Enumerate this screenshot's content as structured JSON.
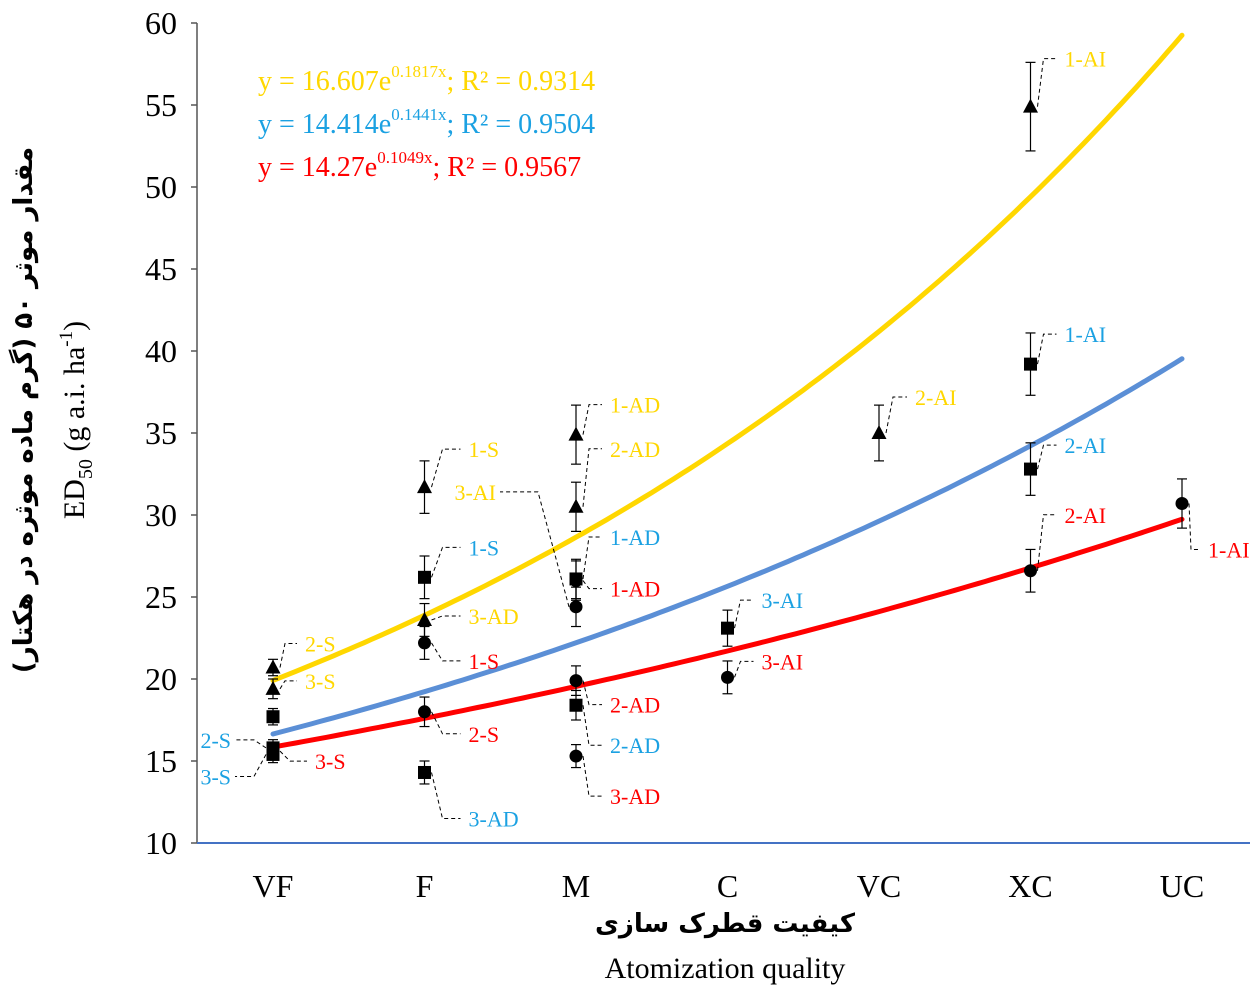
{
  "chart_data": {
    "type": "scatter",
    "categories": [
      "VF",
      "F",
      "M",
      "C",
      "VC",
      "XC",
      "UC"
    ],
    "ylim": [
      10,
      60
    ],
    "yticks": [
      10,
      15,
      20,
      25,
      30,
      35,
      40,
      45,
      50,
      55,
      60
    ],
    "xlabel_fa": "کیفیت قطرک سازی",
    "xlabel_en": "Atomization quality",
    "ylabel_fa": "مقدار موثر ۵۰ (گرم ماده موثره در هکتار)",
    "ylabel_en_main": "ED",
    "ylabel_en_sub": "50",
    "ylabel_en_rest": " (g a.i. ha",
    "ylabel_en_sup": "-1",
    "ylabel_en_close": ")",
    "equations": [
      {
        "pre": "y = 16.607e",
        "exp": "0.1817x",
        "post": "; R² = 0.9314",
        "color": "#FFD700",
        "a": 16.607,
        "b": 0.1817
      },
      {
        "pre": "y = 14.414e",
        "exp": "0.1441x",
        "post": "; R² = 0.9504",
        "color": "#1BA1E2",
        "a": 14.414,
        "b": 0.1441
      },
      {
        "pre": "y = 14.27e",
        "exp": "0.1049x",
        "post": "; R² = 0.9567",
        "color": "#FF0000",
        "a": 14.27,
        "b": 0.1049
      }
    ],
    "trendlines": [
      {
        "marker": "triangle",
        "color": "#FFD700",
        "a": 16.607,
        "b": 0.1817
      },
      {
        "marker": "square",
        "color": "#5B8FD6",
        "a": 14.414,
        "b": 0.1441
      },
      {
        "marker": "circle",
        "color": "#FF0000",
        "a": 14.27,
        "b": 0.1049
      }
    ],
    "points": [
      {
        "x": 1,
        "y": 20.7,
        "err": 0.5,
        "marker": "triangle",
        "label": "2-S",
        "color": "#FFD700",
        "dx": 28,
        "dy": -24
      },
      {
        "x": 1,
        "y": 19.4,
        "err": 0.6,
        "marker": "triangle",
        "label": "3-S",
        "color": "#FFD700",
        "dx": 28,
        "dy": -8
      },
      {
        "x": 1,
        "y": 17.7,
        "err": 0.5,
        "marker": "square",
        "label": "",
        "color": "#000000",
        "dx": 0,
        "dy": 0
      },
      {
        "x": 1,
        "y": 15.8,
        "err": 0.5,
        "marker": "square",
        "label": "2-S",
        "color": "#1BA1E2",
        "dx": -42,
        "dy": -8
      },
      {
        "x": 1,
        "y": 15.4,
        "err": 0.5,
        "marker": "square",
        "label": "3-S",
        "color": "#1BA1E2",
        "dx": -42,
        "dy": 22
      },
      {
        "x": 1,
        "y": 15.6,
        "err": 0.5,
        "marker": "circle",
        "label": "3-S",
        "color": "#FF0000",
        "dx": 38,
        "dy": 10
      },
      {
        "x": 2,
        "y": 31.7,
        "err": 1.6,
        "marker": "triangle",
        "label": "1-S",
        "color": "#FFD700",
        "dx": 40,
        "dy": -38
      },
      {
        "x": 2,
        "y": 23.6,
        "err": 1.0,
        "marker": "triangle",
        "label": "3-AD",
        "color": "#FFD700",
        "dx": 40,
        "dy": -4
      },
      {
        "x": 2,
        "y": 26.2,
        "err": 1.3,
        "marker": "square",
        "label": "1-S",
        "color": "#1BA1E2",
        "dx": 40,
        "dy": -30
      },
      {
        "x": 2,
        "y": 14.3,
        "err": 0.7,
        "marker": "square",
        "label": "3-AD",
        "color": "#1BA1E2",
        "dx": 40,
        "dy": 46
      },
      {
        "x": 2,
        "y": 22.2,
        "err": 1.0,
        "marker": "circle",
        "label": "1-S",
        "color": "#FF0000",
        "dx": 40,
        "dy": 18
      },
      {
        "x": 2,
        "y": 18.0,
        "err": 0.9,
        "marker": "circle",
        "label": "2-S",
        "color": "#FF0000",
        "dx": 40,
        "dy": 22
      },
      {
        "x": 3,
        "y": 34.9,
        "err": 1.8,
        "marker": "triangle",
        "label": "1-AD",
        "color": "#FFD700",
        "dx": 30,
        "dy": -30
      },
      {
        "x": 3,
        "y": 30.5,
        "err": 1.5,
        "marker": "triangle",
        "label": "2-AD",
        "color": "#FFD700",
        "dx": 30,
        "dy": -58
      },
      {
        "x": 3,
        "y": 26.1,
        "err": 1.2,
        "marker": "square",
        "label": "1-AD",
        "color": "#1BA1E2",
        "dx": 30,
        "dy": -42
      },
      {
        "x": 3,
        "y": 18.4,
        "err": 0.9,
        "marker": "square",
        "label": "2-AD",
        "color": "#1BA1E2",
        "dx": 30,
        "dy": 40
      },
      {
        "x": 3,
        "y": 24.4,
        "err": 1.2,
        "marker": "circle",
        "label": "3-AI",
        "color": "#FFD700",
        "dx": -80,
        "dy": -115
      },
      {
        "x": 3,
        "y": 26.0,
        "err": 1.2,
        "marker": "circle",
        "label": "1-AD",
        "color": "#FF0000",
        "dx": 30,
        "dy": 8
      },
      {
        "x": 3,
        "y": 19.9,
        "err": 0.9,
        "marker": "circle",
        "label": "2-AD",
        "color": "#FF0000",
        "dx": 30,
        "dy": 24
      },
      {
        "x": 3,
        "y": 15.3,
        "err": 0.7,
        "marker": "circle",
        "label": "3-AD",
        "color": "#FF0000",
        "dx": 30,
        "dy": 40
      },
      {
        "x": 4,
        "y": 23.1,
        "err": 1.1,
        "marker": "square",
        "label": "3-AI",
        "color": "#1BA1E2",
        "dx": 30,
        "dy": -28
      },
      {
        "x": 4,
        "y": 20.1,
        "err": 1.0,
        "marker": "circle",
        "label": "3-AI",
        "color": "#FF0000",
        "dx": 30,
        "dy": -16
      },
      {
        "x": 5,
        "y": 35.0,
        "err": 1.7,
        "marker": "triangle",
        "label": "2-AI",
        "color": "#FFD700",
        "dx": 32,
        "dy": -36
      },
      {
        "x": 6,
        "y": 54.9,
        "err": 2.7,
        "marker": "triangle",
        "label": "1-AI",
        "color": "#FFD700",
        "dx": 30,
        "dy": -48
      },
      {
        "x": 6,
        "y": 39.2,
        "err": 1.9,
        "marker": "square",
        "label": "1-AI",
        "color": "#1BA1E2",
        "dx": 30,
        "dy": -30
      },
      {
        "x": 6,
        "y": 32.8,
        "err": 1.6,
        "marker": "square",
        "label": "2-AI",
        "color": "#1BA1E2",
        "dx": 30,
        "dy": -24
      },
      {
        "x": 6,
        "y": 26.6,
        "err": 1.3,
        "marker": "circle",
        "label": "2-AI",
        "color": "#FF0000",
        "dx": 30,
        "dy": -56
      },
      {
        "x": 7,
        "y": 30.7,
        "err": 1.5,
        "marker": "circle",
        "label": "1-AI",
        "color": "#FF0000",
        "dx": 22,
        "dy": 46
      }
    ]
  }
}
